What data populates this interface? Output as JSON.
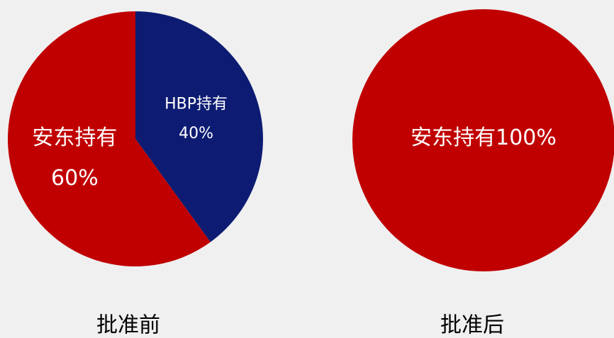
{
  "chart_data": [
    {
      "type": "pie",
      "title": "批准前",
      "categories": [
        "HBP持有",
        "安东持有"
      ],
      "values": [
        40,
        60
      ],
      "value_labels": [
        "40%",
        "60%"
      ],
      "colors": [
        "#0d1c72",
        "#c00000"
      ]
    },
    {
      "type": "pie",
      "title": "批准后",
      "categories": [
        "安东持有"
      ],
      "values": [
        100
      ],
      "value_labels": [
        "100%"
      ],
      "colors": [
        "#c00000"
      ]
    }
  ]
}
